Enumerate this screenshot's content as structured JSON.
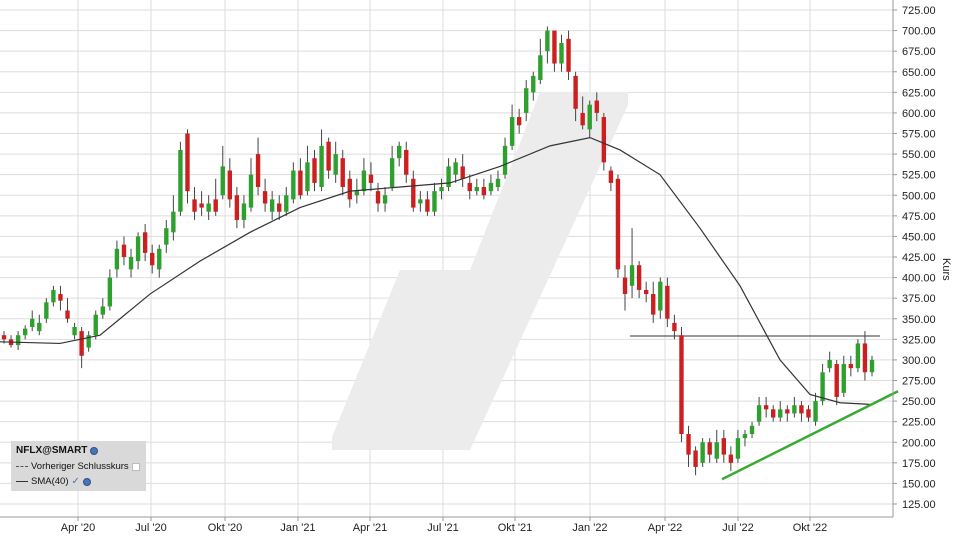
{
  "chart_data": {
    "type": "candlestick",
    "y_ticks": [
      "125.00",
      "150.00",
      "175.00",
      "200.00",
      "225.00",
      "250.00",
      "275.00",
      "300.00",
      "325.00",
      "350.00",
      "375.00",
      "400.00",
      "425.00",
      "450.00",
      "475.00",
      "500.00",
      "525.00",
      "550.00",
      "575.00",
      "600.00",
      "625.00",
      "650.00",
      "675.00",
      "700.00",
      "725.00"
    ],
    "x_ticks": [
      "Apr '20",
      "Jul '20",
      "Okt '20",
      "Jan '21",
      "Apr '21",
      "Jul '21",
      "Okt '21",
      "Jan '22",
      "Apr '22",
      "Jul '22",
      "Okt '22"
    ],
    "ylabel": "Kurs",
    "ylim": [
      115,
      730
    ],
    "grid": true,
    "candles": [
      [
        330,
        325,
        335,
        320
      ],
      [
        325,
        318,
        330,
        315
      ],
      [
        318,
        330,
        335,
        312
      ],
      [
        330,
        338,
        342,
        325
      ],
      [
        340,
        350,
        360,
        335
      ],
      [
        335,
        345,
        355,
        330
      ],
      [
        350,
        370,
        375,
        345
      ],
      [
        370,
        385,
        390,
        365
      ],
      [
        380,
        372,
        390,
        360
      ],
      [
        360,
        350,
        375,
        345
      ],
      [
        330,
        340,
        345,
        325
      ],
      [
        335,
        305,
        340,
        290
      ],
      [
        315,
        330,
        335,
        310
      ],
      [
        330,
        355,
        360,
        325
      ],
      [
        355,
        365,
        375,
        350
      ],
      [
        365,
        400,
        410,
        360
      ],
      [
        410,
        435,
        445,
        400
      ],
      [
        440,
        425,
        450,
        415
      ],
      [
        410,
        425,
        435,
        400
      ],
      [
        420,
        450,
        455,
        410
      ],
      [
        455,
        430,
        465,
        420
      ],
      [
        430,
        415,
        440,
        405
      ],
      [
        410,
        435,
        440,
        400
      ],
      [
        440,
        460,
        470,
        430
      ],
      [
        455,
        480,
        500,
        445
      ],
      [
        480,
        555,
        565,
        475
      ],
      [
        575,
        505,
        580,
        490
      ],
      [
        495,
        480,
        510,
        470
      ],
      [
        490,
        485,
        505,
        475
      ],
      [
        480,
        490,
        500,
        470
      ],
      [
        495,
        480,
        520,
        475
      ],
      [
        500,
        535,
        560,
        495
      ],
      [
        530,
        495,
        545,
        485
      ],
      [
        500,
        470,
        510,
        460
      ],
      [
        470,
        490,
        500,
        460
      ],
      [
        485,
        525,
        545,
        480
      ],
      [
        550,
        510,
        570,
        500
      ],
      [
        505,
        490,
        520,
        480
      ],
      [
        480,
        495,
        505,
        470
      ],
      [
        490,
        480,
        500,
        470
      ],
      [
        480,
        500,
        510,
        475
      ],
      [
        495,
        530,
        540,
        490
      ],
      [
        530,
        500,
        545,
        495
      ],
      [
        505,
        540,
        560,
        500
      ],
      [
        545,
        515,
        555,
        505
      ],
      [
        510,
        560,
        580,
        505
      ],
      [
        565,
        530,
        570,
        520
      ],
      [
        525,
        550,
        565,
        515
      ],
      [
        545,
        510,
        555,
        500
      ],
      [
        520,
        495,
        530,
        485
      ],
      [
        500,
        505,
        520,
        490
      ],
      [
        505,
        530,
        545,
        500
      ],
      [
        525,
        515,
        540,
        505
      ],
      [
        505,
        490,
        515,
        480
      ],
      [
        490,
        500,
        510,
        480
      ],
      [
        510,
        545,
        560,
        505
      ],
      [
        545,
        560,
        565,
        535
      ],
      [
        555,
        525,
        565,
        515
      ],
      [
        520,
        485,
        530,
        480
      ],
      [
        490,
        495,
        505,
        480
      ],
      [
        495,
        480,
        505,
        475
      ],
      [
        480,
        505,
        515,
        475
      ],
      [
        505,
        510,
        520,
        495
      ],
      [
        510,
        535,
        545,
        505
      ],
      [
        525,
        540,
        545,
        515
      ],
      [
        535,
        520,
        550,
        510
      ],
      [
        515,
        505,
        525,
        495
      ],
      [
        505,
        510,
        520,
        500
      ],
      [
        510,
        500,
        520,
        495
      ],
      [
        505,
        515,
        525,
        500
      ],
      [
        510,
        520,
        530,
        505
      ],
      [
        525,
        560,
        570,
        520
      ],
      [
        560,
        595,
        610,
        555
      ],
      [
        595,
        585,
        605,
        575
      ],
      [
        600,
        630,
        640,
        590
      ],
      [
        625,
        645,
        650,
        615
      ],
      [
        640,
        670,
        690,
        635
      ],
      [
        675,
        700,
        705,
        660
      ],
      [
        700,
        660,
        700,
        650
      ],
      [
        660,
        685,
        695,
        650
      ],
      [
        690,
        650,
        700,
        640
      ],
      [
        645,
        605,
        650,
        590
      ],
      [
        600,
        585,
        620,
        580
      ],
      [
        580,
        610,
        615,
        570
      ],
      [
        615,
        600,
        625,
        590
      ],
      [
        595,
        540,
        600,
        530
      ],
      [
        530,
        515,
        535,
        505
      ],
      [
        520,
        410,
        525,
        400
      ],
      [
        400,
        380,
        415,
        360
      ],
      [
        390,
        415,
        460,
        375
      ],
      [
        415,
        385,
        420,
        375
      ],
      [
        385,
        380,
        395,
        370
      ],
      [
        380,
        355,
        395,
        345
      ],
      [
        360,
        395,
        400,
        350
      ],
      [
        390,
        350,
        400,
        340
      ],
      [
        345,
        335,
        355,
        325
      ],
      [
        330,
        210,
        340,
        200
      ],
      [
        210,
        185,
        220,
        170
      ],
      [
        190,
        170,
        195,
        160
      ],
      [
        175,
        200,
        205,
        170
      ],
      [
        200,
        185,
        205,
        175
      ],
      [
        180,
        200,
        215,
        175
      ],
      [
        205,
        185,
        215,
        175
      ],
      [
        185,
        175,
        195,
        165
      ],
      [
        180,
        205,
        215,
        175
      ],
      [
        205,
        210,
        215,
        195
      ],
      [
        210,
        220,
        225,
        205
      ],
      [
        225,
        245,
        255,
        220
      ],
      [
        245,
        240,
        255,
        230
      ],
      [
        240,
        230,
        245,
        225
      ],
      [
        230,
        240,
        250,
        225
      ],
      [
        240,
        235,
        245,
        225
      ],
      [
        235,
        245,
        255,
        230
      ],
      [
        245,
        235,
        250,
        225
      ],
      [
        240,
        230,
        245,
        225
      ],
      [
        225,
        250,
        260,
        220
      ],
      [
        250,
        285,
        295,
        245
      ],
      [
        290,
        300,
        310,
        285
      ],
      [
        295,
        255,
        300,
        245
      ],
      [
        260,
        295,
        305,
        255
      ],
      [
        295,
        290,
        305,
        280
      ],
      [
        290,
        320,
        325,
        285
      ],
      [
        320,
        285,
        335,
        275
      ],
      [
        285,
        300,
        305,
        280
      ]
    ],
    "sma_points": [
      [
        0,
        322
      ],
      [
        60,
        320
      ],
      [
        100,
        330
      ],
      [
        150,
        380
      ],
      [
        200,
        420
      ],
      [
        250,
        455
      ],
      [
        300,
        485
      ],
      [
        350,
        505
      ],
      [
        400,
        510
      ],
      [
        450,
        515
      ],
      [
        500,
        535
      ],
      [
        550,
        560
      ],
      [
        590,
        570
      ],
      [
        620,
        555
      ],
      [
        660,
        525
      ],
      [
        700,
        460
      ],
      [
        740,
        390
      ],
      [
        780,
        300
      ],
      [
        810,
        258
      ],
      [
        840,
        248
      ],
      [
        870,
        246
      ]
    ],
    "horizontal_line": {
      "from": 630,
      "to": 880,
      "value": 329
    },
    "trendline": {
      "x1": 722,
      "y1": 155,
      "x2": 898,
      "y2": 262
    }
  },
  "legend": {
    "title": "NFLX@SMART",
    "row1": "Vorheriger Schlusskurs",
    "row2": "SMA(40)"
  },
  "colors": {
    "up": "#2ea02e",
    "down": "#cc1f1f",
    "sma": "#333333",
    "trend": "#3aaa35",
    "grid": "#dddddd"
  }
}
